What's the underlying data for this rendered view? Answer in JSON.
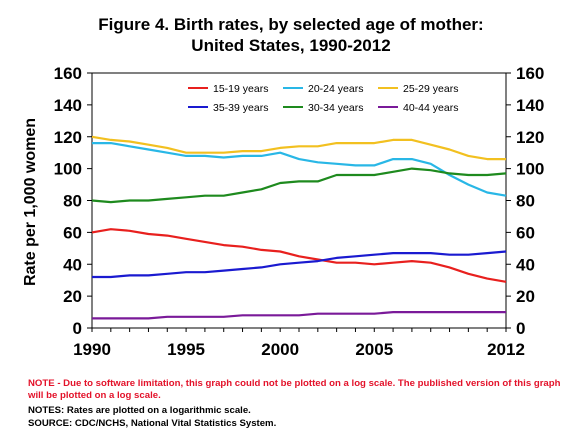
{
  "title_line1": "Figure 4.  Birth rates, by selected age of mother:",
  "title_line2": "United States, 1990-2012",
  "note_red": "NOTE - Due to software limitation, this graph could not be plotted on a log scale.  The published version of this graph will be plotted on a log scale.",
  "notes_line1": "NOTES:  Rates are plotted on a logarithmic scale.",
  "notes_line2": "SOURCE: CDC/NCHS, National Vital Statistics System.",
  "colors": {
    "15-19": "#e8201e",
    "20-24": "#29b7e6",
    "25-29": "#f2c020",
    "30-34": "#1e8a1e",
    "35-39": "#1a1ad0",
    "40-44": "#7a1a99"
  },
  "chart_data": {
    "type": "line",
    "title": "Figure 4.  Birth rates, by selected age of mother: United States, 1990-2012",
    "ylabel": "Rate per 1,000 women",
    "xlabel": "",
    "xlim": [
      1990,
      2012
    ],
    "ylim": [
      0,
      160
    ],
    "x_tick_labels": [
      "1990",
      "1995",
      "2000",
      "2005",
      "2012"
    ],
    "y_tick_labels": [
      "0",
      "20",
      "40",
      "60",
      "80",
      "100",
      "120",
      "140",
      "160"
    ],
    "legend_position": "top",
    "x": [
      1990,
      1991,
      1992,
      1993,
      1994,
      1995,
      1996,
      1997,
      1998,
      1999,
      2000,
      2001,
      2002,
      2003,
      2004,
      2005,
      2006,
      2007,
      2008,
      2009,
      2010,
      2011,
      2012
    ],
    "series": [
      {
        "name": "15-19 years",
        "color_key": "15-19",
        "values": [
          60,
          62,
          61,
          59,
          58,
          56,
          54,
          52,
          51,
          49,
          48,
          45,
          43,
          41,
          41,
          40,
          41,
          42,
          41,
          38,
          34,
          31,
          29
        ]
      },
      {
        "name": "20-24 years",
        "color_key": "20-24",
        "values": [
          116,
          116,
          114,
          112,
          110,
          108,
          108,
          107,
          108,
          108,
          110,
          106,
          104,
          103,
          102,
          102,
          106,
          106,
          103,
          96,
          90,
          85,
          83
        ]
      },
      {
        "name": "25-29 years",
        "color_key": "25-29",
        "values": [
          120,
          118,
          117,
          115,
          113,
          110,
          110,
          110,
          111,
          111,
          113,
          114,
          114,
          116,
          116,
          116,
          118,
          118,
          115,
          112,
          108,
          106,
          106
        ]
      },
      {
        "name": "35-39 years",
        "color_key": "35-39",
        "values": [
          32,
          32,
          33,
          33,
          34,
          35,
          35,
          36,
          37,
          38,
          40,
          41,
          42,
          44,
          45,
          46,
          47,
          47,
          47,
          46,
          46,
          47,
          48
        ]
      },
      {
        "name": "30-34 years",
        "color_key": "30-34",
        "values": [
          80,
          79,
          80,
          80,
          81,
          82,
          83,
          83,
          85,
          87,
          91,
          92,
          92,
          96,
          96,
          96,
          98,
          100,
          99,
          97,
          96,
          96,
          97
        ]
      },
      {
        "name": "40-44 years",
        "color_key": "40-44",
        "values": [
          6,
          6,
          6,
          6,
          7,
          7,
          7,
          7,
          8,
          8,
          8,
          8,
          9,
          9,
          9,
          9,
          10,
          10,
          10,
          10,
          10,
          10,
          10
        ]
      }
    ]
  }
}
